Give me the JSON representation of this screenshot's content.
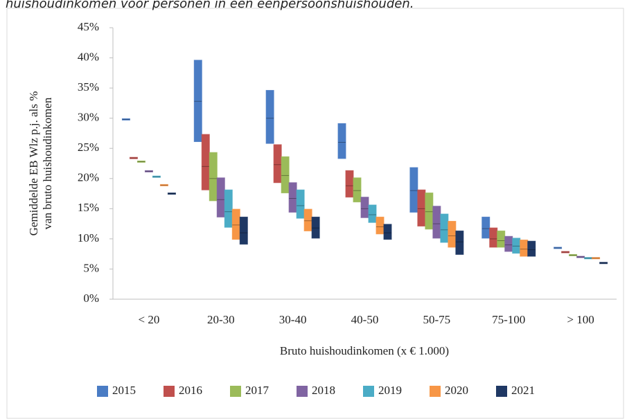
{
  "chart_data": {
    "type": "floating-bar",
    "title": "huishoudinkomen voor personen in een eenpersoonshuishouden.",
    "x_label": "Bruto huishoudinkomen (x € 1.000)",
    "y_label": [
      "Gemiddelde EB Wlz p.j. als %",
      "van bruto huishoudinkomen"
    ],
    "categories": [
      "< 20",
      "20-30",
      "30-40",
      "40-50",
      "50-75",
      "75-100",
      "> 100"
    ],
    "ylim": [
      0,
      45
    ],
    "yticks": [
      {
        "value": 0,
        "label": "0%"
      },
      {
        "value": 5,
        "label": "5%"
      },
      {
        "value": 10,
        "label": "10%"
      },
      {
        "value": 15,
        "label": "15%"
      },
      {
        "value": 20,
        "label": "20%"
      },
      {
        "value": 25,
        "label": "25%"
      },
      {
        "value": 30,
        "label": "30%"
      },
      {
        "value": 35,
        "label": "35%"
      },
      {
        "value": 40,
        "label": "40%"
      },
      {
        "value": 45,
        "label": "45%"
      }
    ],
    "legend": "bottom",
    "series": [
      {
        "name": "2015",
        "color": "#4a7cc4",
        "low": [
          29.8,
          26,
          25.7,
          23.2,
          14.3,
          10,
          8.5
        ],
        "high": [
          29.8,
          39.5,
          34.5,
          29,
          21.7,
          13.5,
          8.5
        ],
        "values": [
          29.8,
          32.8,
          30,
          26,
          18,
          11.7,
          8.5
        ]
      },
      {
        "name": "2016",
        "color": "#c0504d",
        "low": [
          23.4,
          18,
          19.2,
          16.8,
          12,
          8.5,
          7.8
        ],
        "high": [
          23.4,
          27.2,
          25.5,
          21.2,
          18,
          11.7,
          7.8
        ],
        "values": [
          23.4,
          22,
          22.3,
          18.8,
          15,
          10,
          7.8
        ]
      },
      {
        "name": "2017",
        "color": "#9bbb59",
        "low": [
          22.8,
          16.2,
          17.5,
          16,
          11.5,
          8.5,
          7.3
        ],
        "high": [
          22.8,
          24.2,
          23.5,
          20,
          17.5,
          11.2,
          7.3
        ],
        "values": [
          22.8,
          20,
          20.5,
          18,
          14.5,
          9.7,
          7.3
        ]
      },
      {
        "name": "2018",
        "color": "#8064a2",
        "low": [
          21.2,
          13.5,
          14.3,
          13.4,
          10,
          7.8,
          7
        ],
        "high": [
          21.2,
          20,
          19.2,
          16.8,
          15.3,
          10.3,
          7
        ],
        "values": [
          21.2,
          16.5,
          16.7,
          15,
          12.5,
          9,
          7
        ]
      },
      {
        "name": "2019",
        "color": "#4bacc6",
        "low": [
          20.3,
          11.8,
          13.3,
          12.6,
          9.3,
          7.5,
          6.8
        ],
        "high": [
          20.3,
          18,
          18,
          15.5,
          14,
          10,
          6.8
        ],
        "values": [
          20.3,
          14.5,
          15.5,
          14,
          11.5,
          8.8,
          6.8
        ]
      },
      {
        "name": "2020",
        "color": "#f79646",
        "low": [
          18.9,
          9.8,
          11.2,
          10.7,
          8.5,
          7,
          6.8
        ],
        "high": [
          18.9,
          14.8,
          14.8,
          13.5,
          12.8,
          9.7,
          6.8
        ],
        "values": [
          18.9,
          12.3,
          13,
          12,
          10.5,
          8.3,
          6.8
        ]
      },
      {
        "name": "2021",
        "color": "#1f3864",
        "low": [
          17.5,
          9,
          10,
          9.8,
          7.3,
          7,
          6
        ],
        "high": [
          17.5,
          13.5,
          13.5,
          12.3,
          11.2,
          9.5,
          6
        ],
        "values": [
          17.5,
          11,
          11.8,
          11,
          9.5,
          8.2,
          6
        ]
      }
    ]
  }
}
